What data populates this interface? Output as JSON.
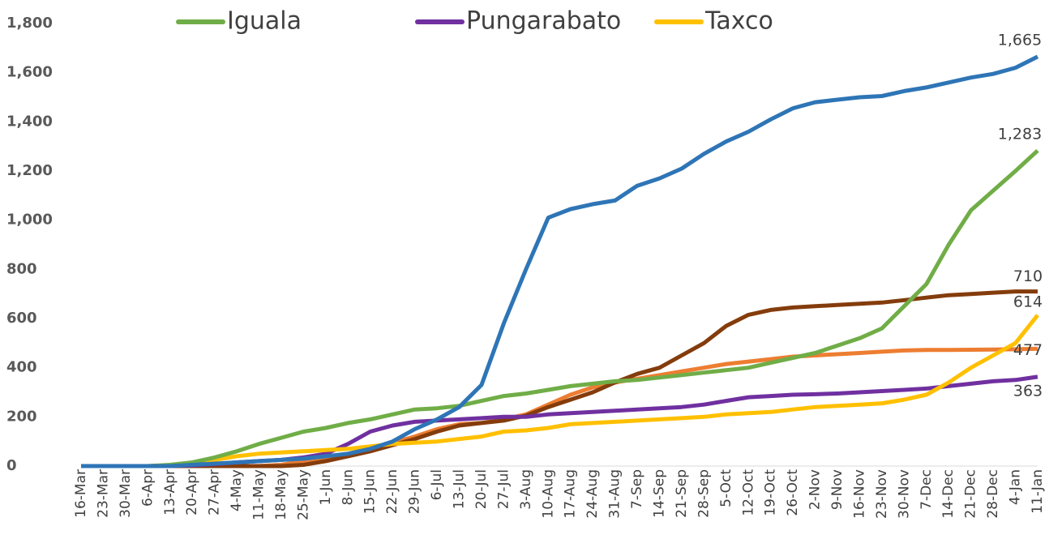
{
  "chart_data": {
    "type": "line",
    "categories": [
      "16-Mar",
      "23-Mar",
      "30-Mar",
      "6-Apr",
      "13-Apr",
      "20-Apr",
      "27-Apr",
      "4-May",
      "11-May",
      "18-May",
      "25-May",
      "1-Jun",
      "8-Jun",
      "15-Jun",
      "22-Jun",
      "29-Jun",
      "6-Jul",
      "13-Jul",
      "20-Jul",
      "27-Jul",
      "3-Aug",
      "10-Aug",
      "17-Aug",
      "24-Aug",
      "31-Aug",
      "7-Sep",
      "14-Sep",
      "21-Sep",
      "28-Sep",
      "5-Oct",
      "12-Oct",
      "19-Oct",
      "26-Oct",
      "2-Nov",
      "9-Nov",
      "16-Nov",
      "23-Nov",
      "30-Nov",
      "7-Dec",
      "14-Dec",
      "21-Dec",
      "28-Dec",
      "4-Jan",
      "11-Jan"
    ],
    "ylim": [
      0,
      1800
    ],
    "yticks": [
      0,
      200,
      400,
      600,
      800,
      {
        "value": 1000,
        "label": "1,000"
      },
      {
        "value": 1200,
        "label": "1,200"
      },
      {
        "value": 1400,
        "label": "1,400"
      },
      {
        "value": 1600,
        "label": "1,600"
      },
      {
        "value": 1800,
        "label": "1,800"
      }
    ],
    "series": [
      {
        "color": "#2e75b6",
        "values": [
          0,
          0,
          0,
          0,
          0,
          5,
          10,
          15,
          20,
          25,
          30,
          40,
          50,
          70,
          100,
          150,
          190,
          240,
          330,
          580,
          800,
          1010,
          1045,
          1065,
          1080,
          1140,
          1170,
          1210,
          1270,
          1320,
          1360,
          1410,
          1455,
          1480,
          1490,
          1500,
          1505,
          1525,
          1540,
          1560,
          1580,
          1595,
          1620,
          1665
        ],
        "value_labels": [
          null,
          null,
          null,
          null,
          null,
          null,
          null,
          null,
          null,
          null,
          null,
          null,
          null,
          null,
          null,
          null,
          null,
          null,
          null,
          null,
          null,
          null,
          null,
          null,
          null,
          null,
          null,
          null,
          null,
          null,
          null,
          null,
          null,
          null,
          null,
          null,
          null,
          null,
          null,
          null,
          null,
          null,
          null,
          "1,665"
        ]
      },
      {
        "color": "#ed7d31",
        "values": [
          0,
          0,
          0,
          0,
          0,
          0,
          0,
          0,
          0,
          5,
          20,
          35,
          50,
          70,
          95,
          120,
          150,
          170,
          175,
          190,
          210,
          250,
          290,
          320,
          340,
          355,
          370,
          385,
          400,
          415,
          425,
          435,
          445,
          450,
          455,
          460,
          465,
          470,
          472,
          472,
          473,
          474,
          475,
          477
        ]
      },
      {
        "color": "#843c0c",
        "values": [
          0,
          0,
          0,
          0,
          0,
          0,
          0,
          0,
          0,
          0,
          5,
          20,
          40,
          60,
          85,
          110,
          140,
          165,
          175,
          185,
          205,
          240,
          270,
          300,
          340,
          375,
          400,
          450,
          500,
          570,
          615,
          635,
          645,
          650,
          655,
          660,
          665,
          675,
          685,
          695,
          700,
          705,
          710,
          710
        ]
      },
      {
        "name": "Iguala",
        "color": "#70ad47",
        "values": [
          0,
          0,
          0,
          0,
          5,
          15,
          35,
          60,
          90,
          115,
          140,
          155,
          175,
          190,
          210,
          230,
          235,
          245,
          265,
          285,
          295,
          310,
          325,
          335,
          345,
          350,
          360,
          370,
          380,
          390,
          400,
          420,
          440,
          460,
          490,
          520,
          560,
          650,
          740,
          900,
          1040,
          1120,
          1200,
          1283
        ],
        "value_labels": [
          null,
          null,
          null,
          null,
          null,
          null,
          null,
          null,
          null,
          null,
          null,
          null,
          null,
          null,
          null,
          null,
          null,
          null,
          null,
          null,
          null,
          null,
          null,
          null,
          null,
          null,
          null,
          null,
          null,
          null,
          null,
          null,
          null,
          null,
          null,
          null,
          null,
          null,
          null,
          null,
          null,
          null,
          null,
          "1,283"
        ]
      },
      {
        "name": "Pungarabato",
        "color": "#7030a0",
        "values": [
          0,
          0,
          0,
          0,
          0,
          3,
          8,
          15,
          20,
          25,
          35,
          50,
          90,
          140,
          165,
          180,
          185,
          190,
          195,
          200,
          200,
          210,
          215,
          220,
          225,
          230,
          235,
          240,
          250,
          265,
          280,
          285,
          290,
          292,
          295,
          300,
          305,
          310,
          315,
          325,
          335,
          345,
          350,
          363
        ]
      },
      {
        "name": "Taxco",
        "color": "#ffc000",
        "values": [
          0,
          0,
          0,
          0,
          3,
          10,
          25,
          40,
          50,
          55,
          60,
          65,
          70,
          80,
          90,
          95,
          100,
          110,
          120,
          140,
          145,
          155,
          170,
          175,
          180,
          185,
          190,
          195,
          200,
          210,
          215,
          220,
          230,
          240,
          245,
          250,
          255,
          270,
          290,
          340,
          400,
          450,
          500,
          614
        ]
      }
    ]
  }
}
